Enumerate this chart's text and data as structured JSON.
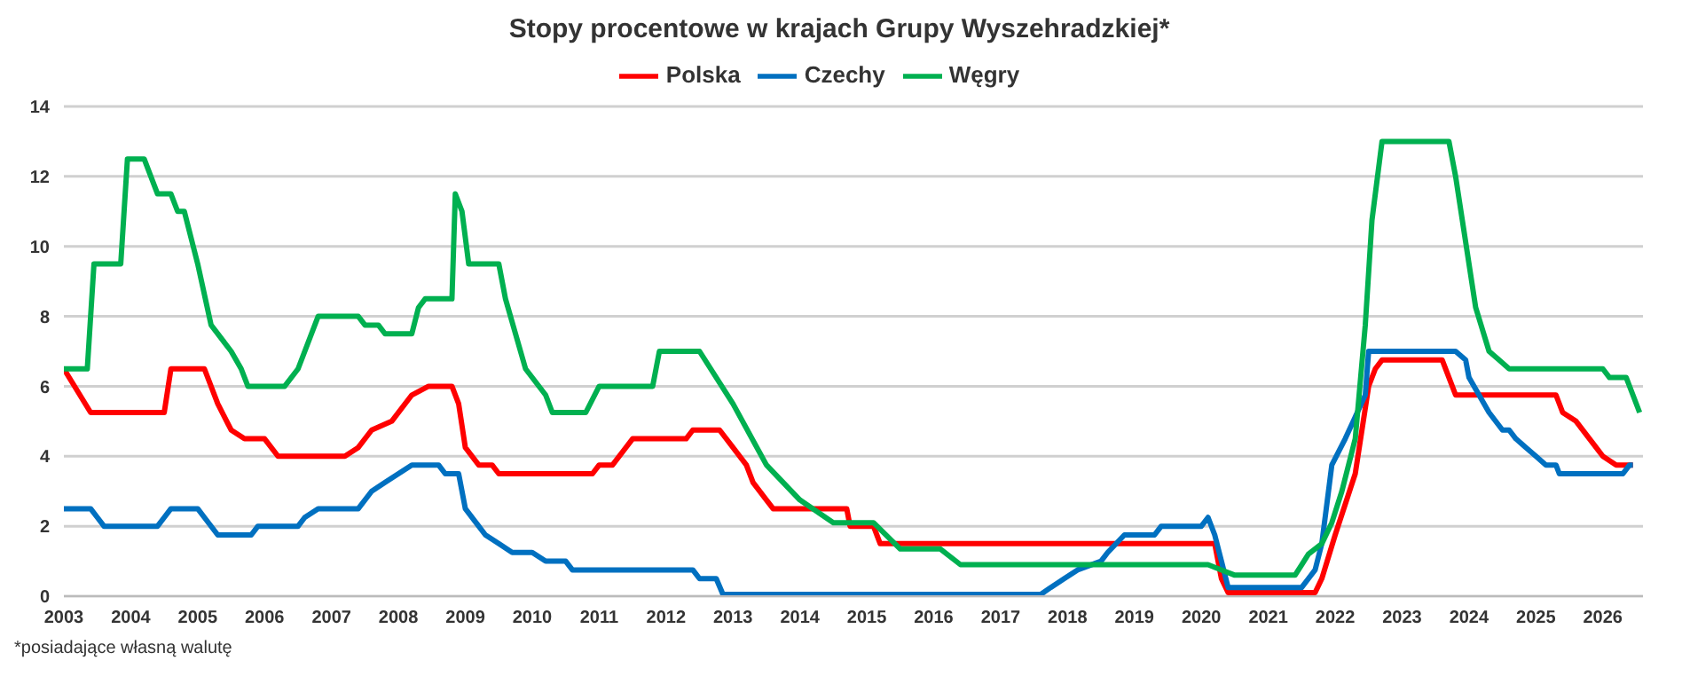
{
  "chart_data": {
    "type": "line",
    "title": "Stopy procentowe w krajach Grupy Wyszehradzkiej*",
    "annotations": [
      "*posiadające własną walutę"
    ],
    "xlim": [
      2003,
      2026.6
    ],
    "xticks": [
      2003,
      2004,
      2005,
      2006,
      2007,
      2008,
      2009,
      2010,
      2011,
      2012,
      2013,
      2014,
      2015,
      2016,
      2017,
      2018,
      2019,
      2020,
      2021,
      2022,
      2023,
      2024,
      2025,
      2026
    ],
    "ylim": [
      0,
      14
    ],
    "yticks": [
      0,
      2,
      4,
      6,
      8,
      10,
      12,
      14
    ],
    "grid": "y",
    "legend": "top",
    "marker": "none",
    "line_style": "solid",
    "series": [
      {
        "name": "Polska",
        "color": "#ff0000",
        "x": [
          2003.0,
          2003.4,
          2004.5,
          2004.6,
          2005.1,
          2005.3,
          2005.5,
          2005.7,
          2006.0,
          2006.2,
          2007.2,
          2007.4,
          2007.6,
          2007.9,
          2008.2,
          2008.45,
          2008.8,
          2008.9,
          2009.0,
          2009.2,
          2009.4,
          2009.5,
          2010.9,
          2011.0,
          2011.2,
          2011.5,
          2012.3,
          2012.4,
          2012.8,
          2013.0,
          2013.2,
          2013.3,
          2013.5,
          2013.6,
          2014.7,
          2014.75,
          2015.1,
          2015.2,
          2020.2,
          2020.3,
          2020.4,
          2021.7,
          2021.8,
          2022.0,
          2022.3,
          2022.5,
          2022.6,
          2022.7,
          2023.6,
          2023.75,
          2023.8,
          2025.3,
          2025.4,
          2025.6,
          2025.9,
          2026.0,
          2026.2,
          2026.45
        ],
        "values": [
          6.5,
          5.25,
          5.25,
          6.5,
          6.5,
          5.5,
          4.75,
          4.5,
          4.5,
          4.0,
          4.0,
          4.25,
          4.75,
          5.0,
          5.75,
          6.0,
          6.0,
          5.5,
          4.25,
          3.75,
          3.75,
          3.5,
          3.5,
          3.75,
          3.75,
          4.5,
          4.5,
          4.75,
          4.75,
          4.25,
          3.75,
          3.25,
          2.75,
          2.5,
          2.5,
          2.0,
          2.0,
          1.5,
          1.5,
          0.5,
          0.1,
          0.1,
          0.5,
          1.75,
          3.5,
          6.0,
          6.5,
          6.75,
          6.75,
          6.0,
          5.75,
          5.75,
          5.25,
          5.0,
          4.25,
          4.0,
          3.75,
          3.75
        ]
      },
      {
        "name": "Czechy",
        "color": "#0070c0",
        "x": [
          2003.0,
          2003.4,
          2003.5,
          2003.6,
          2004.4,
          2004.5,
          2004.6,
          2005.0,
          2005.1,
          2005.3,
          2005.8,
          2005.9,
          2006.5,
          2006.6,
          2006.8,
          2007.4,
          2007.6,
          2007.8,
          2008.0,
          2008.2,
          2008.6,
          2008.7,
          2008.9,
          2009.0,
          2009.2,
          2009.3,
          2009.5,
          2009.7,
          2010.0,
          2010.2,
          2010.5,
          2010.6,
          2012.4,
          2012.5,
          2012.75,
          2012.85,
          2017.6,
          2017.75,
          2017.95,
          2018.15,
          2018.5,
          2018.6,
          2018.85,
          2019.3,
          2019.4,
          2020.0,
          2020.1,
          2020.2,
          2020.3,
          2020.4,
          2021.5,
          2021.6,
          2021.7,
          2021.8,
          2021.95,
          2022.15,
          2022.45,
          2022.5,
          2023.8,
          2023.95,
          2024.0,
          2024.3,
          2024.5,
          2024.6,
          2024.7,
          2024.85,
          2025.0,
          2025.15,
          2025.3,
          2025.35,
          2026.3,
          2026.4,
          2026.45
        ],
        "values": [
          2.5,
          2.5,
          2.25,
          2.0,
          2.0,
          2.25,
          2.5,
          2.5,
          2.25,
          1.75,
          1.75,
          2.0,
          2.0,
          2.25,
          2.5,
          2.5,
          3.0,
          3.25,
          3.5,
          3.75,
          3.75,
          3.5,
          3.5,
          2.5,
          2.0,
          1.75,
          1.5,
          1.25,
          1.25,
          1.0,
          1.0,
          0.75,
          0.75,
          0.5,
          0.5,
          0.05,
          0.05,
          0.25,
          0.5,
          0.75,
          1.0,
          1.25,
          1.75,
          1.75,
          2.0,
          2.0,
          2.25,
          1.75,
          1.0,
          0.25,
          0.25,
          0.5,
          0.75,
          1.5,
          3.75,
          4.5,
          5.75,
          7.0,
          7.0,
          6.75,
          6.25,
          5.25,
          4.75,
          4.75,
          4.5,
          4.25,
          4.0,
          3.75,
          3.75,
          3.5,
          3.5,
          3.75,
          3.75
        ]
      },
      {
        "name": "Węgry",
        "color": "#00b050",
        "x": [
          2003.0,
          2003.35,
          2003.45,
          2003.85,
          2003.95,
          2004.2,
          2004.3,
          2004.4,
          2004.6,
          2004.7,
          2004.8,
          2005.0,
          2005.2,
          2005.5,
          2005.65,
          2005.75,
          2006.3,
          2006.5,
          2006.8,
          2007.4,
          2007.5,
          2007.7,
          2007.8,
          2008.2,
          2008.3,
          2008.4,
          2008.8,
          2008.85,
          2008.95,
          2009.05,
          2009.5,
          2009.6,
          2009.9,
          2010.2,
          2010.3,
          2010.8,
          2011.0,
          2011.8,
          2011.9,
          2012.5,
          2013.0,
          2013.5,
          2014.0,
          2014.5,
          2015.1,
          2015.5,
          2016.1,
          2016.4,
          2020.1,
          2020.3,
          2020.5,
          2021.4,
          2021.5,
          2021.6,
          2021.8,
          2021.95,
          2022.1,
          2022.3,
          2022.45,
          2022.55,
          2022.7,
          2023.7,
          2023.8,
          2023.9,
          2024.1,
          2024.3,
          2024.45,
          2024.6,
          2026.0,
          2026.1,
          2026.35,
          2026.45,
          2026.55
        ],
        "values": [
          6.5,
          6.5,
          9.5,
          9.5,
          12.5,
          12.5,
          12.0,
          11.5,
          11.5,
          11.0,
          11.0,
          9.5,
          7.75,
          7.0,
          6.5,
          6.0,
          6.0,
          6.5,
          8.0,
          8.0,
          7.75,
          7.75,
          7.5,
          7.5,
          8.25,
          8.5,
          8.5,
          11.5,
          11.0,
          9.5,
          9.5,
          8.5,
          6.5,
          5.75,
          5.25,
          5.25,
          6.0,
          6.0,
          7.0,
          7.0,
          5.5,
          3.75,
          2.75,
          2.1,
          2.1,
          1.35,
          1.35,
          0.9,
          0.9,
          0.75,
          0.6,
          0.6,
          0.9,
          1.2,
          1.5,
          2.1,
          3.0,
          4.5,
          7.75,
          10.75,
          13.0,
          13.0,
          12.0,
          10.75,
          8.25,
          7.0,
          6.75,
          6.5,
          6.5,
          6.25,
          6.25,
          5.75,
          5.25
        ]
      }
    ]
  }
}
